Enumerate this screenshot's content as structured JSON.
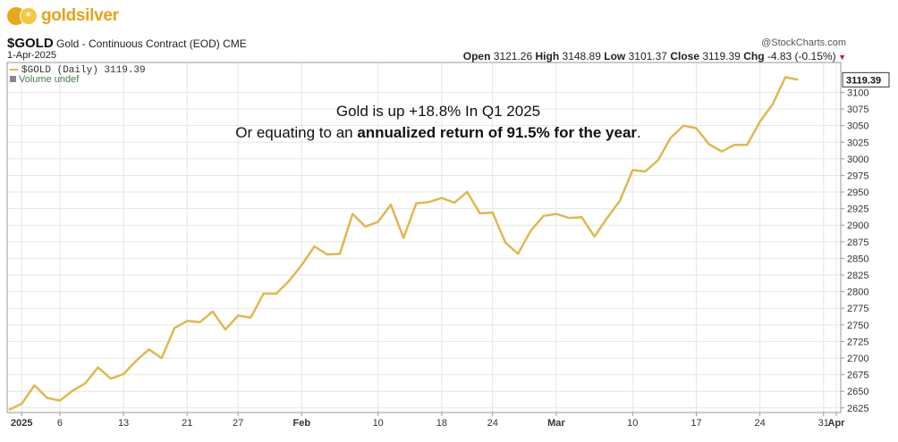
{
  "header": {
    "brand": "goldsilver",
    "symbol": "$GOLD",
    "description": "Gold - Continuous Contract (EOD)",
    "exchange": "CME",
    "date": "1-Apr-2025",
    "credit": "@StockCharts.com",
    "open_label": "Open",
    "open": "3121.26",
    "high_label": "High",
    "high": "3148.89",
    "low_label": "Low",
    "low": "3101.37",
    "close_label": "Close",
    "close": "3119.39",
    "chg_label": "Chg",
    "chg": "-4.83 (-0.15%)"
  },
  "chart_data": {
    "type": "line",
    "legend": [
      "$GOLD (Daily) 3119.39",
      "Volume undef"
    ],
    "annotation_line1": "Gold is up +18.8% In Q1 2025",
    "annotation_line2_prefix": "Or equating to an ",
    "annotation_line2_bold": "annualized return of 91.5% for the year",
    "annotation_line2_suffix": ".",
    "last_value_label": "3119.39",
    "ylim": [
      2618,
      3145
    ],
    "y_ticks": [
      2625,
      2650,
      2675,
      2700,
      2725,
      2750,
      2775,
      2800,
      2825,
      2850,
      2875,
      2900,
      2925,
      2950,
      2975,
      3000,
      3025,
      3050,
      3075,
      3100
    ],
    "x_ticks": [
      {
        "label": "2025",
        "i": 1
      },
      {
        "label": "6",
        "i": 4
      },
      {
        "label": "13",
        "i": 9
      },
      {
        "label": "21",
        "i": 14
      },
      {
        "label": "27",
        "i": 18
      },
      {
        "label": "Feb",
        "i": 23
      },
      {
        "label": "10",
        "i": 29
      },
      {
        "label": "18",
        "i": 34
      },
      {
        "label": "24",
        "i": 38
      },
      {
        "label": "Mar",
        "i": 43
      },
      {
        "label": "10",
        "i": 49
      },
      {
        "label": "17",
        "i": 54
      },
      {
        "label": "24",
        "i": 59
      },
      {
        "label": "31",
        "i": 64
      },
      {
        "label": "Apr",
        "i": 65
      }
    ],
    "series": [
      {
        "name": "$GOLD (Daily)",
        "values": [
          2622,
          2631,
          2659,
          2640,
          2636,
          2651,
          2662,
          2686,
          2669,
          2676,
          2696,
          2713,
          2700,
          2745,
          2756,
          2754,
          2770,
          2743,
          2764,
          2761,
          2797,
          2797,
          2816,
          2840,
          2868,
          2856,
          2857,
          2917,
          2898,
          2905,
          2931,
          2881,
          2933,
          2935,
          2941,
          2934,
          2950,
          2918,
          2919,
          2874,
          2857,
          2892,
          2914,
          2917,
          2911,
          2912,
          2883,
          2911,
          2937,
          2983,
          2981,
          2998,
          3032,
          3050,
          3046,
          3022,
          3011,
          3021,
          3021,
          3056,
          3082,
          3123,
          3119
        ]
      }
    ]
  }
}
